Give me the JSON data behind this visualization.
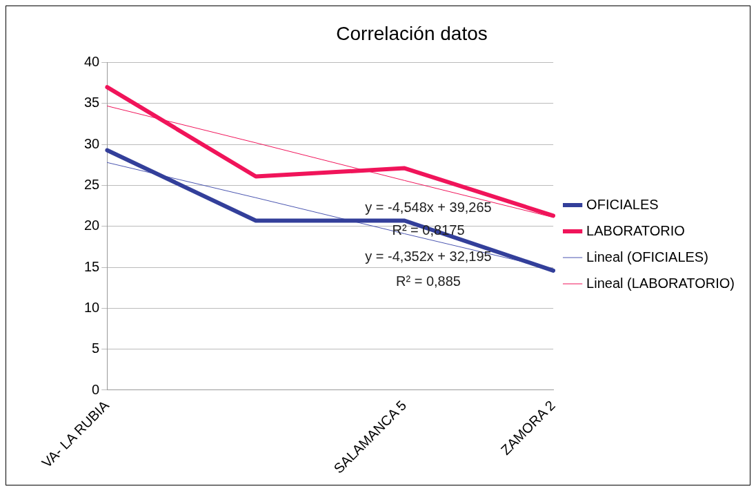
{
  "chart_data": {
    "type": "line",
    "title": "Correlación datos",
    "categories": [
      "VA- LA RUBIA",
      null,
      "SALAMANCA 5",
      "ZAMORA 2"
    ],
    "series": [
      {
        "name": "OFICIALES",
        "color": "#333f9a",
        "values": [
          29.3,
          20.7,
          20.7,
          14.6
        ]
      },
      {
        "name": "LABORATORIO",
        "color": "#f0145a",
        "values": [
          37,
          26.1,
          27.1,
          21.3
        ]
      },
      {
        "name": "Lineal (OFICIALES)",
        "color": "#4a55b0",
        "values": [
          27.8,
          23.5,
          19.1,
          14.8
        ]
      },
      {
        "name": "Lineal (LABORATORIO)",
        "color": "#f0145a",
        "values": [
          34.7,
          30.2,
          25.6,
          21.1
        ]
      }
    ],
    "ylim": [
      0,
      40
    ],
    "yticks": [
      0,
      5,
      10,
      15,
      20,
      25,
      30,
      35,
      40
    ],
    "grid": "y",
    "legend": "right",
    "marker": "none",
    "line_style": "solid",
    "annotations": [
      "y = -4,548x + 39,265",
      "R² = 0,8175",
      "y = -4,352x + 32,195",
      "R² = 0,885"
    ]
  }
}
